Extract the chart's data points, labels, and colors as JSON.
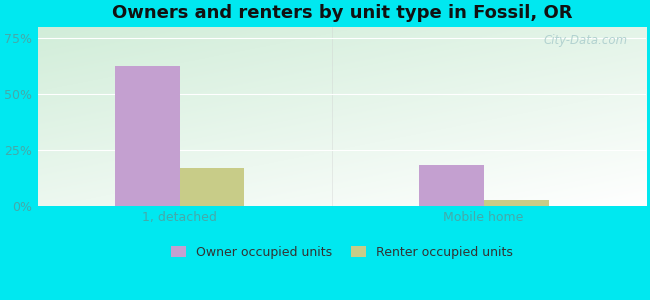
{
  "title": "Owners and renters by unit type in Fossil, OR",
  "categories": [
    "1, detached",
    "Mobile home"
  ],
  "owner_values": [
    62.5,
    18.0
  ],
  "renter_values": [
    17.0,
    2.5
  ],
  "owner_color": "#c4a0d0",
  "renter_color": "#c8cc88",
  "owner_label": "Owner occupied units",
  "renter_label": "Renter occupied units",
  "yticks": [
    0,
    25,
    50,
    75
  ],
  "ytick_labels": [
    "0%",
    "25%",
    "50%",
    "75%"
  ],
  "ylim": [
    0,
    80
  ],
  "background_outer": "#00e8f0",
  "watermark": "City-Data.com",
  "bar_width": 0.32,
  "figsize": [
    6.5,
    3.0
  ],
  "dpi": 100
}
